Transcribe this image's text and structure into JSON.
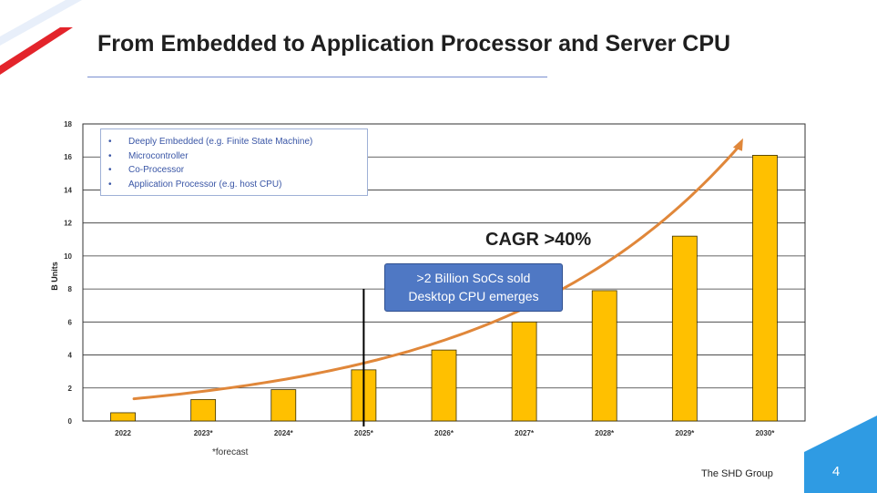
{
  "slide": {
    "title": "From Embedded to Application Processor and Server CPU",
    "footer": "The SHD Group",
    "page_number": "4",
    "forecast_note": "*forecast"
  },
  "colors": {
    "bar": "#FFC000",
    "bar_stroke": "#3a2f00",
    "trend": "#E0873A",
    "callout": "#4F78C4",
    "accent_red": "#E3242B",
    "accent_blue": "#2F9BE3"
  },
  "chart_data": {
    "type": "bar",
    "categories": [
      "2022",
      "2023*",
      "2024*",
      "2025*",
      "2026*",
      "2027*",
      "2028*",
      "2029*",
      "2030*"
    ],
    "values": [
      0.5,
      1.3,
      1.9,
      3.1,
      4.3,
      6.0,
      7.9,
      11.2,
      16.1
    ],
    "ylabel": "B Units",
    "xlabel": "",
    "ylim": [
      0,
      18
    ],
    "yticks": [
      0,
      2,
      4,
      6,
      8,
      10,
      12,
      14,
      16,
      18
    ],
    "grid": true,
    "legend_items": [
      "Deeply Embedded (e.g. Finite State Machine)",
      "Microcontroller",
      "Co-Processor",
      "Application Processor (e.g. host CPU)"
    ],
    "annotations": {
      "cagr": "CAGR >40%",
      "callout_line1": ">2 Billion SoCs sold",
      "callout_line2": "Desktop CPU emerges",
      "marker_category": "2025*",
      "marker_value": 8
    }
  }
}
